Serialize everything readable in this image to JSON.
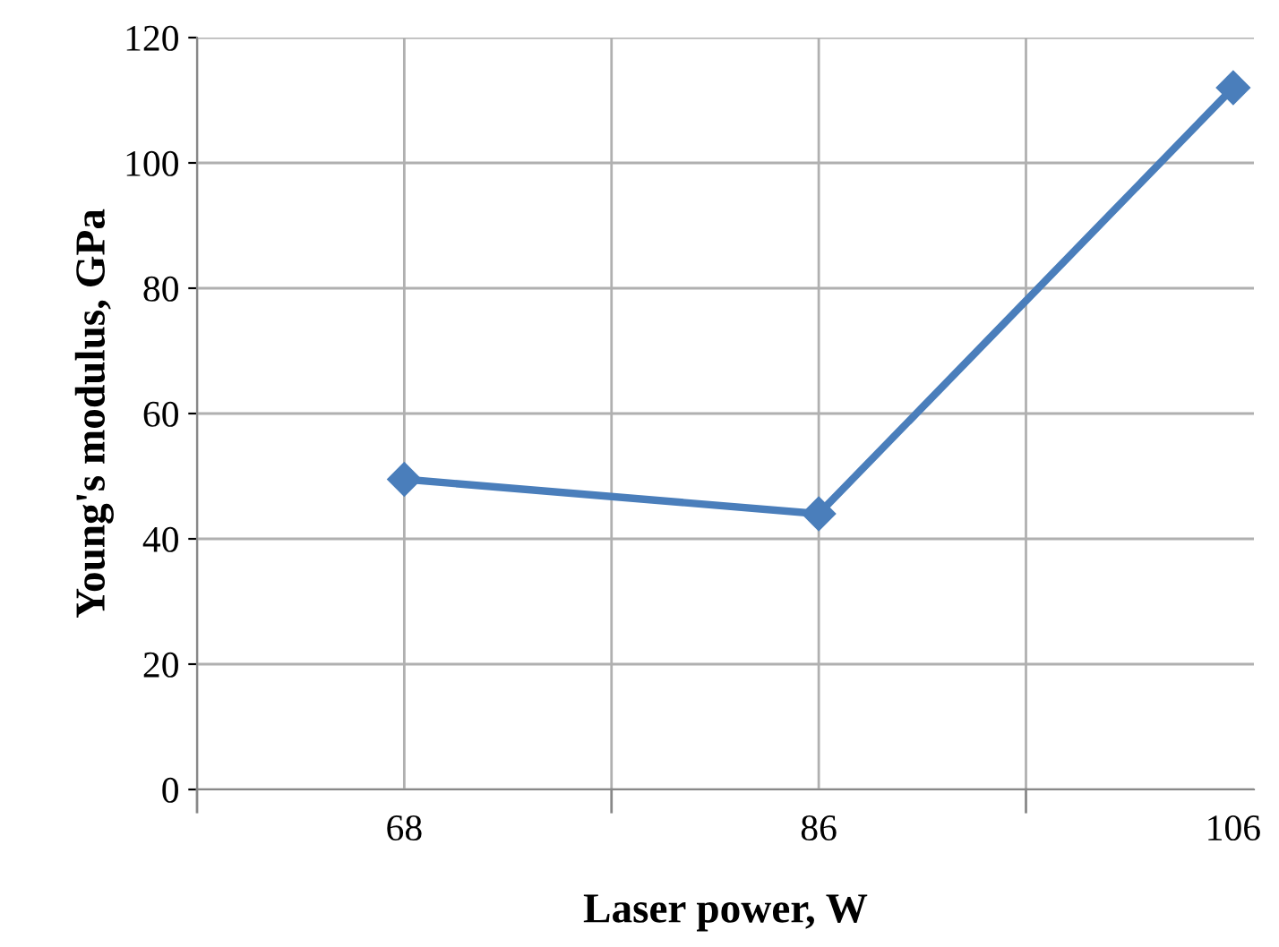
{
  "chart_data": {
    "type": "line",
    "xlabel": "Laser power, W",
    "ylabel": "Young's modulus, GPa",
    "categories": [
      "68",
      "86",
      "106"
    ],
    "series": [
      {
        "color": "#4a7ebb",
        "values": [
          49.5,
          44,
          112
        ]
      }
    ],
    "ylim": [
      0,
      120
    ],
    "yticks": [
      0,
      20,
      40,
      60,
      80,
      100,
      120
    ],
    "grid": true,
    "marker": "diamond",
    "line_style": "solid",
    "legend": false
  }
}
